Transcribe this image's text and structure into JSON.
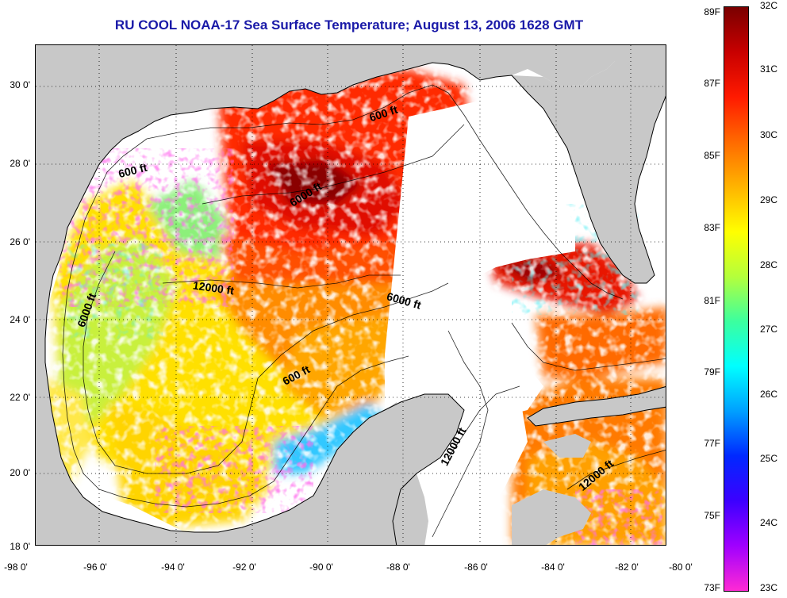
{
  "title": "RU COOL  NOAA-17  Sea Surface Temperature;  August 13, 2006 1628 GMT",
  "lat_labels": [
    "30 0'",
    "28 0'",
    "26 0'",
    "24 0'",
    "22 0'",
    "20 0'",
    "18 0'"
  ],
  "lon_labels": [
    "-98 0'",
    "-96 0'",
    "-94 0'",
    "-92 0'",
    "-90 0'",
    "-88 0'",
    "-86 0'",
    "-84 0'",
    "-82 0'",
    "-80 0'"
  ],
  "contour_labels": [
    {
      "text": "600 ft",
      "rotate": -18
    },
    {
      "text": "6000 ft",
      "rotate": -32
    },
    {
      "text": "600 ft",
      "rotate": -14
    },
    {
      "text": "12000 ft",
      "rotate": 8
    },
    {
      "text": "6000 ft",
      "rotate": 16
    },
    {
      "text": "6000 ft",
      "rotate": -70
    },
    {
      "text": "600 ft",
      "rotate": -28
    },
    {
      "text": "12000 ft",
      "rotate": -62
    },
    {
      "text": "12000 ft",
      "rotate": -40
    }
  ],
  "colorbar": {
    "fahrenheit_labels": [
      "89F",
      "87F",
      "85F",
      "83F",
      "81F",
      "79F",
      "77F",
      "75F",
      "73F"
    ],
    "celsius_labels": [
      "32C",
      "31C",
      "30C",
      "29C",
      "28C",
      "27C",
      "26C",
      "25C",
      "24C",
      "23C"
    ],
    "colors": [
      "#7a0000",
      "#c80000",
      "#ff1a00",
      "#ff6a00",
      "#ffb400",
      "#ffff00",
      "#b4ff3c",
      "#3cff9e",
      "#00ffff",
      "#00a0ff",
      "#0028ff",
      "#3c00ff",
      "#a000ff",
      "#ff2ad4"
    ]
  },
  "colors": {
    "land": "#c8c8c8",
    "no_data": "#ffffff",
    "title": "#1a1aa8"
  }
}
